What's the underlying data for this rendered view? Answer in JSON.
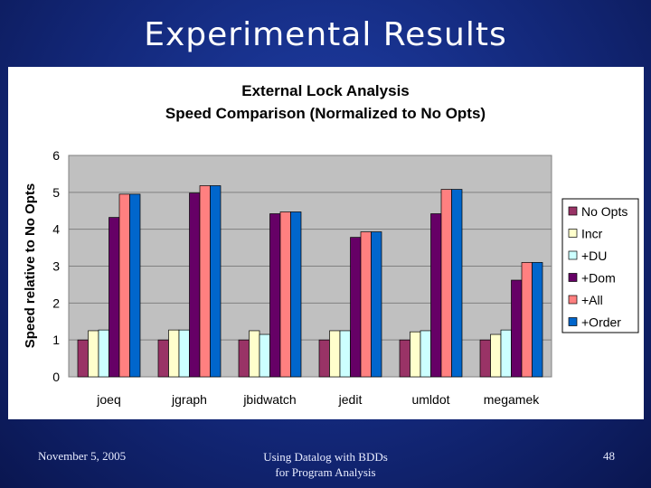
{
  "slide": {
    "title": "Experimental Results",
    "footer_left": "November 5, 2005",
    "footer_center_line1": "Using Datalog with BDDs",
    "footer_center_line2": "for Program Analysis",
    "page_number": "48"
  },
  "chart_data": {
    "type": "bar",
    "title": "External Lock Analysis",
    "subtitle": "Speed Comparison (Normalized to No Opts)",
    "xlabel": "",
    "ylabel": "Speed relative to No Opts",
    "ylim": [
      0,
      6
    ],
    "yticks": [
      "0",
      "1",
      "2",
      "3",
      "4",
      "5",
      "6"
    ],
    "grid": true,
    "legend_position": "right",
    "categories": [
      "joeq",
      "jgraph",
      "jbidwatch",
      "jedit",
      "umldot",
      "megamek"
    ],
    "series": [
      {
        "name": "No Opts",
        "color": "#993366",
        "values": [
          1.0,
          1.0,
          1.0,
          1.0,
          1.0,
          1.0
        ]
      },
      {
        "name": "Incr",
        "color": "#ffffcc",
        "values": [
          1.25,
          1.27,
          1.25,
          1.25,
          1.22,
          1.15
        ]
      },
      {
        "name": "+DU",
        "color": "#ccffff",
        "values": [
          1.27,
          1.27,
          1.15,
          1.25,
          1.25,
          1.27
        ]
      },
      {
        "name": "+Dom",
        "color": "#660066",
        "values": [
          4.32,
          4.98,
          4.42,
          3.78,
          4.42,
          2.62
        ]
      },
      {
        "name": "+All",
        "color": "#ff8080",
        "values": [
          4.95,
          5.18,
          4.47,
          3.93,
          5.08,
          3.1
        ]
      },
      {
        "name": "+Order",
        "color": "#0066cc",
        "values": [
          4.95,
          5.18,
          4.47,
          3.93,
          5.08,
          3.1
        ]
      }
    ]
  }
}
